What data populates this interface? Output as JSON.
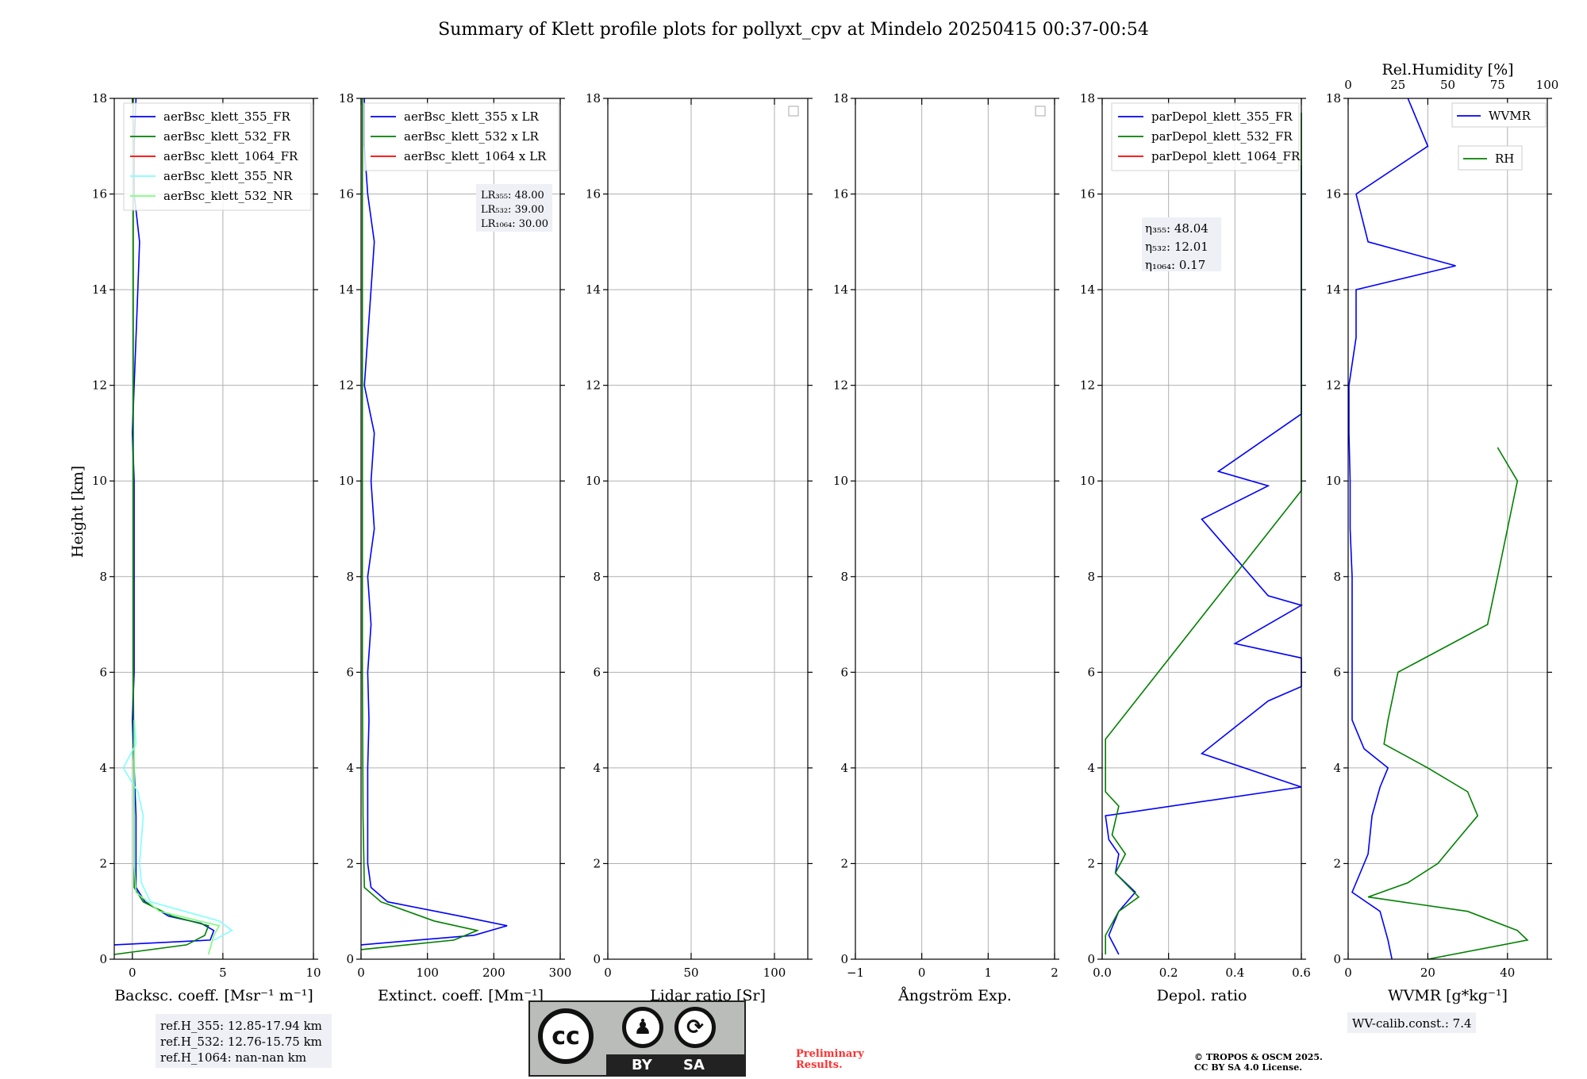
{
  "title": "Summary of Klett profile plots for pollyxt_cpv at Mindelo 20250415 00:37-00:54",
  "ylabel": "Height [km]",
  "y_ticks": [
    "0",
    "2",
    "4",
    "6",
    "8",
    "10",
    "12",
    "14",
    "16",
    "18"
  ],
  "ylim": [
    0,
    18
  ],
  "colors": {
    "blue": "#0000ff",
    "green": "#008000",
    "red": "#ff0000",
    "cyan": "#7fffff",
    "lightgreen": "#7cfc7c"
  },
  "chart_data": [
    {
      "type": "line",
      "xlabel": "Backsc. coeff. [Msr⁻¹ m⁻¹]",
      "xlim": [
        -1,
        10
      ],
      "x_ticks": [
        "0",
        "5",
        "10"
      ],
      "legend_placement": "top-left",
      "series": [
        {
          "name": "aerBsc_klett_355_FR",
          "color": "#0000ff",
          "profile": [
            [
              0.3,
              -1
            ],
            [
              0.4,
              4.3
            ],
            [
              0.6,
              4.5
            ],
            [
              0.75,
              3.8
            ],
            [
              0.9,
              2.0
            ],
            [
              1.2,
              0.7
            ],
            [
              1.5,
              0.2
            ],
            [
              2.0,
              0.2
            ],
            [
              3.0,
              0.2
            ],
            [
              4.0,
              0.1
            ],
            [
              5.0,
              0.0
            ],
            [
              6.0,
              0.1
            ],
            [
              7.0,
              0.1
            ],
            [
              8.0,
              0.1
            ],
            [
              9.0,
              0.1
            ],
            [
              10.0,
              0.1
            ],
            [
              11.0,
              0.0
            ],
            [
              12.0,
              0.1
            ],
            [
              13.0,
              0.2
            ],
            [
              14.0,
              0.3
            ],
            [
              15.0,
              0.4
            ],
            [
              16.0,
              0.1
            ],
            [
              17.0,
              0.1
            ],
            [
              18.0,
              0.2
            ]
          ]
        },
        {
          "name": "aerBsc_klett_532_FR",
          "color": "#008000",
          "profile": [
            [
              0.1,
              -1
            ],
            [
              0.3,
              3.0
            ],
            [
              0.5,
              4.0
            ],
            [
              0.7,
              4.2
            ],
            [
              0.9,
              2.2
            ],
            [
              1.2,
              0.6
            ],
            [
              1.5,
              0.1
            ],
            [
              3.0,
              0.1
            ],
            [
              6.0,
              0.05
            ],
            [
              9.0,
              0.05
            ],
            [
              12.0,
              0.05
            ],
            [
              15.0,
              0.05
            ],
            [
              18.0,
              0.05
            ]
          ]
        },
        {
          "name": "aerBsc_klett_1064_FR",
          "color": "#ff0000",
          "profile": []
        },
        {
          "name": "aerBsc_klett_355_NR",
          "color": "#7fffff",
          "profile": [
            [
              0.4,
              4.5
            ],
            [
              0.6,
              5.5
            ],
            [
              0.8,
              4.8
            ],
            [
              1.2,
              1.0
            ],
            [
              1.6,
              0.5
            ],
            [
              2.0,
              0.4
            ],
            [
              2.5,
              0.5
            ],
            [
              3.0,
              0.6
            ],
            [
              3.5,
              0.3
            ],
            [
              4.0,
              -0.5
            ],
            [
              4.5,
              0.2
            ],
            [
              5.0,
              0.1
            ]
          ]
        },
        {
          "name": "aerBsc_klett_532_NR",
          "color": "#7cfc7c",
          "profile": [
            [
              0.1,
              4.2
            ],
            [
              0.5,
              4.5
            ],
            [
              0.7,
              4.8
            ],
            [
              1.0,
              1.5
            ],
            [
              1.4,
              0.2
            ],
            [
              2.0,
              0.1
            ],
            [
              4.0,
              0.1
            ],
            [
              5.0,
              0.1
            ]
          ]
        }
      ],
      "annotation": [
        "ref.H_355: 12.85-17.94 km",
        "ref.H_532: 12.76-15.75 km",
        "ref.H_1064: nan-nan km"
      ]
    },
    {
      "type": "line",
      "xlabel": "Extinct. coeff. [Mm⁻¹]",
      "xlim": [
        0,
        300
      ],
      "x_ticks": [
        "0",
        "100",
        "200",
        "300"
      ],
      "legend_placement": "top-right",
      "series": [
        {
          "name": "aerBsc_klett_355 x LR",
          "color": "#0000ff",
          "profile": [
            [
              0.3,
              0
            ],
            [
              0.5,
              170
            ],
            [
              0.7,
              220
            ],
            [
              0.9,
              150
            ],
            [
              1.2,
              40
            ],
            [
              1.5,
              15
            ],
            [
              2.0,
              10
            ],
            [
              3.0,
              10
            ],
            [
              4.0,
              10
            ],
            [
              5.0,
              12
            ],
            [
              6.0,
              10
            ],
            [
              7.0,
              15
            ],
            [
              8.0,
              10
            ],
            [
              9.0,
              20
            ],
            [
              10.0,
              15
            ],
            [
              11.0,
              20
            ],
            [
              12.0,
              5
            ],
            [
              13.0,
              10
            ],
            [
              14.0,
              15
            ],
            [
              15.0,
              20
            ],
            [
              16.0,
              10
            ],
            [
              17.0,
              5
            ],
            [
              18.0,
              5
            ]
          ]
        },
        {
          "name": "aerBsc_klett_532 x LR",
          "color": "#008000",
          "profile": [
            [
              0.2,
              0
            ],
            [
              0.4,
              140
            ],
            [
              0.6,
              175
            ],
            [
              0.8,
              110
            ],
            [
              1.2,
              30
            ],
            [
              1.5,
              5
            ],
            [
              3.0,
              3
            ],
            [
              6.0,
              2
            ],
            [
              9.0,
              2
            ],
            [
              12.0,
              2
            ],
            [
              15.0,
              2
            ],
            [
              18.0,
              2
            ]
          ]
        },
        {
          "name": "aerBsc_klett_1064 x LR",
          "color": "#ff0000",
          "profile": []
        }
      ],
      "lr_labels": [
        "LR₃₅₅: 48.00",
        "LR₅₃₂: 39.00",
        "LR₁₀₆₄: 30.00"
      ]
    },
    {
      "type": "line",
      "xlabel": "Lidar ratio [Sr]",
      "xlim": [
        0,
        120
      ],
      "x_ticks": [
        "0",
        "50",
        "100"
      ],
      "series": []
    },
    {
      "type": "line",
      "xlabel": "Ångström Exp.",
      "xlim": [
        -1,
        2
      ],
      "x_ticks": [
        "−1",
        "0",
        "1",
        "2"
      ],
      "series": []
    },
    {
      "type": "line",
      "xlabel": "Depol. ratio",
      "xlim": [
        0,
        0.6
      ],
      "x_ticks": [
        "0.0",
        "0.2",
        "0.4",
        "0.6"
      ],
      "legend_placement": "top-right",
      "series": [
        {
          "name": "parDepol_klett_355_FR",
          "color": "#0000ff",
          "profile": [
            [
              0.1,
              0.05
            ],
            [
              0.5,
              0.02
            ],
            [
              1.0,
              0.05
            ],
            [
              1.4,
              0.1
            ],
            [
              1.8,
              0.04
            ],
            [
              2.2,
              0.05
            ],
            [
              2.5,
              0.02
            ],
            [
              3.0,
              0.01
            ],
            [
              3.6,
              0.6
            ],
            [
              4.3,
              0.3
            ],
            [
              5.4,
              0.5
            ],
            [
              5.7,
              0.6
            ],
            [
              6.3,
              0.6
            ],
            [
              6.6,
              0.4
            ],
            [
              7.4,
              0.6
            ],
            [
              7.6,
              0.5
            ],
            [
              9.2,
              0.3
            ],
            [
              9.9,
              0.5
            ],
            [
              10.2,
              0.35
            ],
            [
              11.4,
              0.6
            ],
            [
              12.8,
              0.6
            ],
            [
              13.9,
              0.6
            ],
            [
              14.5,
              0.6
            ],
            [
              15.8,
              0.6
            ],
            [
              16.6,
              0.6
            ]
          ]
        },
        {
          "name": "parDepol_klett_532_FR",
          "color": "#008000",
          "profile": [
            [
              0.1,
              0.01
            ],
            [
              0.5,
              0.01
            ],
            [
              1.0,
              0.05
            ],
            [
              1.3,
              0.11
            ],
            [
              1.8,
              0.04
            ],
            [
              2.2,
              0.07
            ],
            [
              2.6,
              0.03
            ],
            [
              3.2,
              0.05
            ],
            [
              3.5,
              0.01
            ],
            [
              4.6,
              0.01
            ],
            [
              9.8,
              0.6
            ],
            [
              10.0,
              0.6
            ],
            [
              11.3,
              0.6
            ],
            [
              12.6,
              0.6
            ],
            [
              13.5,
              0.6
            ],
            [
              14.7,
              0.6
            ],
            [
              16.5,
              0.6
            ],
            [
              17.7,
              0.6
            ]
          ]
        },
        {
          "name": "parDepol_klett_1064_FR",
          "color": "#ff0000",
          "profile": []
        }
      ],
      "eta_labels": [
        "η₃₅₅: 48.04",
        "η₅₃₂: 12.01",
        "η₁₀₆₄: 0.17"
      ]
    },
    {
      "type": "line",
      "xlabel": "WVMR [g*kg⁻¹]",
      "xlim": [
        0,
        50
      ],
      "x_ticks": [
        "0",
        "20",
        "40"
      ],
      "top_label": "Rel.Humidity [%]",
      "top_ticks": [
        "0",
        "25",
        "50",
        "75",
        "100"
      ],
      "series": [
        {
          "name": "WVMR",
          "color": "#0000ff",
          "profile": [
            [
              0.0,
              11
            ],
            [
              0.4,
              10
            ],
            [
              1.0,
              8
            ],
            [
              1.4,
              1
            ],
            [
              1.8,
              3
            ],
            [
              2.2,
              5
            ],
            [
              3.0,
              6
            ],
            [
              3.6,
              8
            ],
            [
              4.0,
              10
            ],
            [
              4.4,
              4
            ],
            [
              5.0,
              1
            ],
            [
              6.0,
              1
            ],
            [
              7.0,
              1
            ],
            [
              8.0,
              1
            ],
            [
              9.0,
              0.5
            ],
            [
              10.0,
              0.5
            ],
            [
              11.0,
              0.2
            ],
            [
              12.0,
              0.2
            ],
            [
              13.0,
              2
            ],
            [
              14.0,
              2
            ],
            [
              14.5,
              27
            ],
            [
              15.0,
              5
            ],
            [
              16.0,
              2
            ],
            [
              17.0,
              20
            ],
            [
              18.0,
              15
            ]
          ]
        },
        {
          "name": "RH",
          "color": "#008000",
          "rh_profile": [
            [
              0.0,
              40
            ],
            [
              0.4,
              90
            ],
            [
              0.6,
              85
            ],
            [
              1.0,
              60
            ],
            [
              1.3,
              10
            ],
            [
              1.6,
              30
            ],
            [
              2.0,
              45
            ],
            [
              2.5,
              55
            ],
            [
              3.0,
              65
            ],
            [
              3.5,
              60
            ],
            [
              4.0,
              40
            ],
            [
              4.5,
              18
            ],
            [
              5.0,
              20
            ],
            [
              6.0,
              25
            ],
            [
              7.0,
              70
            ],
            [
              8.0,
              75
            ],
            [
              9.0,
              80
            ],
            [
              10.0,
              85
            ],
            [
              10.7,
              75
            ]
          ]
        }
      ],
      "annotation": "WV-calib.const.: 7.4"
    }
  ],
  "footer": {
    "preliminary": [
      "Preliminary",
      "Results."
    ],
    "copyright": [
      "© TROPOS & OSCM 2025.",
      "CC BY SA 4.0 License."
    ],
    "cc_badge": {
      "cc": "cc",
      "by": "BY",
      "sa": "SA",
      "icons": [
        "attribution-person-icon",
        "share-alike-icon"
      ]
    }
  }
}
